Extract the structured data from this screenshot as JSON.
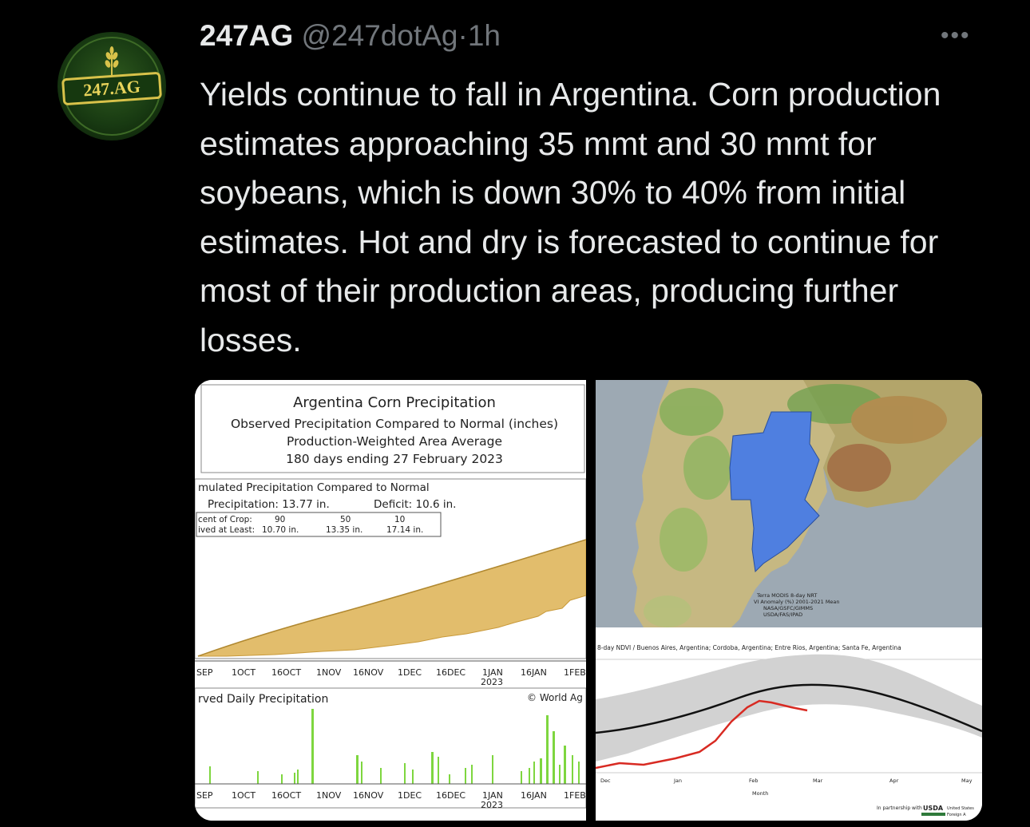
{
  "tweet": {
    "display_name": "247AG",
    "handle": "@247dotAg",
    "separator": "·",
    "time": "1h",
    "more_label": "•••",
    "avatar_text": "247.AG",
    "text": "Yields continue to fall in Argentina.  Corn production estimates approaching 35 mmt and 30 mmt for soybeans, which is down 30% to 40% from initial estimates. Hot and dry is forecasted to continue for most of their production areas, producing further losses."
  },
  "media_left": {
    "title": "Argentina Corn Precipitation",
    "subtitle1": "Observed Precipitation Compared to Normal (inches)",
    "subtitle2": "Production-Weighted Area Average",
    "subtitle3": "180 days ending 27 February 2023",
    "accum_title": "mulated Precipitation Compared to Normal",
    "accum_precip": "Precipitation: 13.77 in.",
    "accum_deficit": "Deficit: 10.6 in.",
    "crop_row1_label": "cent of Crop:",
    "crop_row1_values": [
      "90",
      "50",
      "10"
    ],
    "crop_row2_label": "ived at Least:",
    "crop_row2_values": [
      "10.70 in.",
      "13.35 in.",
      "17.14 in."
    ],
    "x_ticks": [
      "SEP",
      "1OCT",
      "16OCT",
      "1NOV",
      "16NOV",
      "1DEC",
      "16DEC",
      "1JAN",
      "16JAN",
      "1FEB"
    ],
    "year_label": "2023",
    "daily_title": "rved Daily Precipitation",
    "credit": "© World Ag"
  },
  "media_right": {
    "map_credit_lines": [
      "Terra MODIS 8-day NRT",
      "VI Anomaly (%) 2001-2021 Mean",
      "NASA/GSFC/GIMMS",
      "USDA/FAS/IPAD"
    ],
    "ndvi_title": "8-day NDVI / Buenos Aires, Argentina; Cordoba, Argentina; Entre Rios, Argentina; Santa Fe, Argentina",
    "x_ticks": [
      "Dec",
      "Jan",
      "Feb",
      "Mar",
      "Apr",
      "May"
    ],
    "x_label": "Month",
    "partner_text": "In partnership with",
    "partner_logo": "USDA",
    "partner_sub1": "United States",
    "partner_sub2": "Foreign A"
  },
  "colors": {
    "background": "#000000",
    "text": "#e7e9ea",
    "muted": "#71767b",
    "deficit_fill": "#e2bd6c",
    "bar_green": "#7ed63f",
    "map_blue": "#4f7fe0",
    "ndvi_red": "#d82a22"
  }
}
